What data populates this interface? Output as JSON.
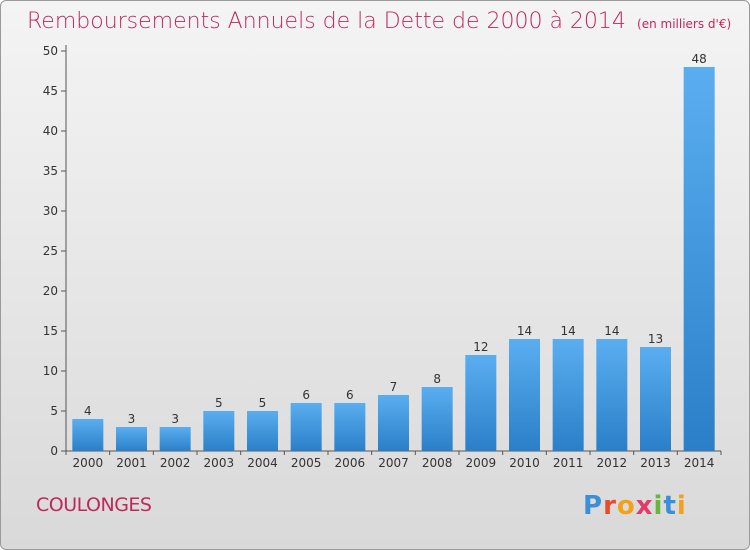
{
  "header": {
    "title": "Remboursements Annuels de la Dette de 2000 à 2014",
    "unit": "(en milliers d'€)"
  },
  "footer": {
    "town": "COULONGES",
    "logo": "Proxiti"
  },
  "colors": {
    "title": "#c0285a",
    "bar_light": "#5aaef0",
    "bar_dark": "#2a7fc8"
  },
  "chart_data": {
    "type": "bar",
    "title": "Remboursements Annuels de la Dette de 2000 à 2014",
    "subtitle": "(en milliers d'€)",
    "categories": [
      "2000",
      "2001",
      "2002",
      "2003",
      "2004",
      "2005",
      "2006",
      "2007",
      "2008",
      "2009",
      "2010",
      "2011",
      "2012",
      "2013",
      "2014"
    ],
    "values": [
      4,
      3,
      3,
      5,
      5,
      6,
      6,
      7,
      8,
      12,
      14,
      14,
      14,
      13,
      48
    ],
    "ylim": [
      0,
      50
    ],
    "yticks": [
      0,
      5,
      10,
      15,
      20,
      25,
      30,
      35,
      40,
      45,
      50
    ],
    "grid": false,
    "legend": "none"
  }
}
